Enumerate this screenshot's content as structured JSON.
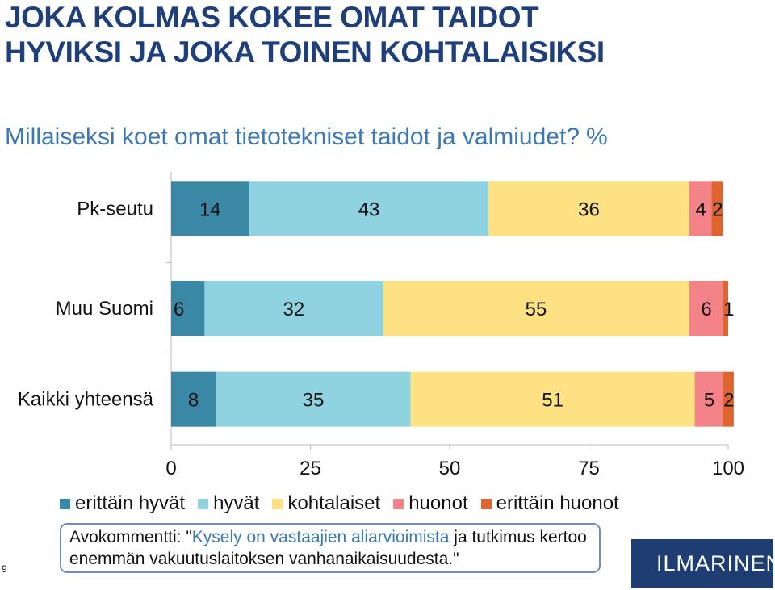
{
  "title_line1": "JOKA KOLMAS  KOKEE OMAT TAIDOT",
  "title_line2": "HYVIKSI JA JOKA TOINEN KOHTALAISIKSI",
  "subtitle": "Millaiseksi koet omat tietotekniset taidot ja valmiudet?",
  "subtitle_unit": "%",
  "chart_data": {
    "type": "bar",
    "orientation": "horizontal",
    "stacked": true,
    "categories": [
      "Pk-seutu",
      "Muu Suomi",
      "Kaikki yhteensä"
    ],
    "series": [
      {
        "name": "erittäin hyvät",
        "color": "#3a87a6",
        "values": [
          14,
          6,
          8
        ]
      },
      {
        "name": "hyvät",
        "color": "#8ed3df",
        "values": [
          43,
          32,
          35
        ]
      },
      {
        "name": "kohtalaiset",
        "color": "#fde183",
        "values": [
          36,
          55,
          51
        ]
      },
      {
        "name": "huonot",
        "color": "#f48389",
        "values": [
          4,
          6,
          5
        ]
      },
      {
        "name": "erittäin huonot",
        "color": "#df6430",
        "values": [
          2,
          1,
          2
        ]
      }
    ],
    "xlim": [
      0,
      100
    ],
    "xticks": [
      "0",
      "25",
      "50",
      "75",
      "100"
    ],
    "data_labels": true,
    "legend_position": "bottom",
    "grid": false
  },
  "callout": {
    "prefix": "Avokommentti: \"",
    "highlight": "Kysely on vastaajien aliarvioimista",
    "rest": " ja tutkimus kertoo enemmän vakuutuslaitoksen vanhanaikaisuudesta.\""
  },
  "page_number": "9",
  "logo_text": "ILMARINEN",
  "colors": {
    "title": "#1f3f7a",
    "subtitle": "#3b78b5",
    "logo_bg": "#1e3d73"
  }
}
